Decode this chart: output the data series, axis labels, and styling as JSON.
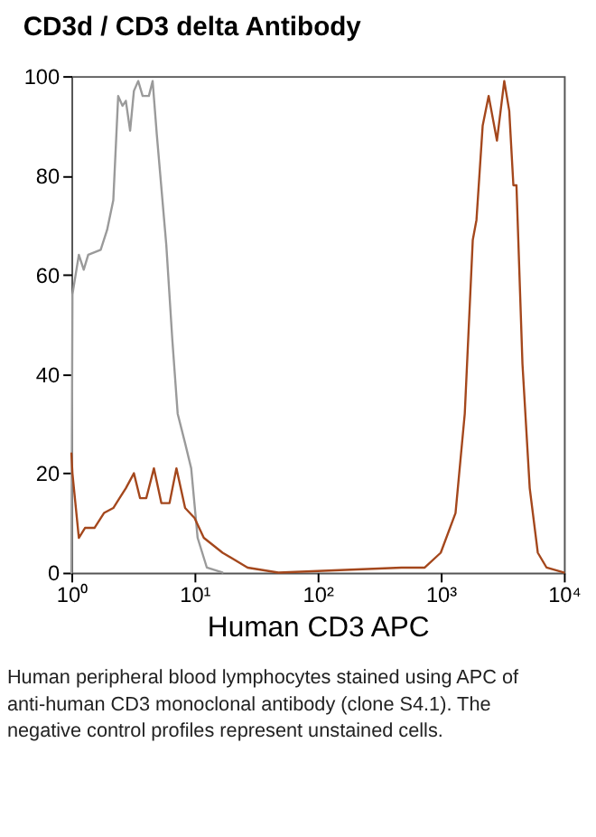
{
  "chart_data": {
    "type": "line",
    "title": "CD3d / CD3 delta Antibody",
    "xlabel": "Human CD3  APC",
    "log": "x",
    "legend": false,
    "grid": false,
    "xlim": [
      1,
      10000
    ],
    "xticks": [
      {
        "value": 1,
        "label": "10⁰"
      },
      {
        "value": 10,
        "label": "10¹"
      },
      {
        "value": 100,
        "label": "10²"
      },
      {
        "value": 1000,
        "label": "10³"
      },
      {
        "value": 10000,
        "label": "10⁴"
      }
    ],
    "ylim": [
      0,
      100
    ],
    "yticks": [
      0,
      20,
      40,
      60,
      80,
      100
    ],
    "series": [
      {
        "color": "#9a9a9a",
        "x": [
          1.0,
          1.02,
          1.15,
          1.26,
          1.37,
          1.73,
          1.95,
          2.19,
          2.4,
          2.6,
          2.77,
          3.0,
          3.22,
          3.49,
          3.79,
          4.26,
          4.57,
          4.95,
          5.9,
          6.6,
          7.3,
          8.4,
          9.4,
          10.6,
          12.6,
          16.9
        ],
        "values": [
          0,
          56,
          64,
          61,
          64,
          65,
          69,
          75,
          96,
          94,
          95,
          89,
          97,
          99,
          96,
          96,
          99,
          88,
          66,
          47,
          32,
          26,
          21,
          7,
          1,
          0
        ]
      },
      {
        "color": "#a4471c",
        "x": [
          1.0,
          1.02,
          1.15,
          1.29,
          1.54,
          1.84,
          2.19,
          2.46,
          2.77,
          3.22,
          3.61,
          4.06,
          4.68,
          5.38,
          6.27,
          7.13,
          8.39,
          10,
          11.9,
          16.9,
          27,
          48,
          479,
          741,
          1000,
          1318,
          1567,
          1820,
          1950,
          2190,
          2450,
          2860,
          3280,
          3600,
          3890,
          4120,
          4610,
          5280,
          6140,
          7240,
          10000
        ],
        "values": [
          24,
          20,
          7,
          9,
          9,
          12,
          13,
          15,
          17,
          20,
          15,
          15,
          21,
          14,
          14,
          21,
          13,
          11,
          7,
          4,
          1,
          0,
          1,
          1,
          4,
          12,
          32,
          67,
          71,
          90,
          96,
          87,
          99,
          93,
          78,
          78,
          42,
          17,
          4,
          1,
          0
        ]
      }
    ],
    "annotations": [
      "Human peripheral blood lymphocytes stained using APC of anti-human CD3 monoclonal antibody (clone S4.1). The negative control profiles represent unstained cells."
    ]
  }
}
